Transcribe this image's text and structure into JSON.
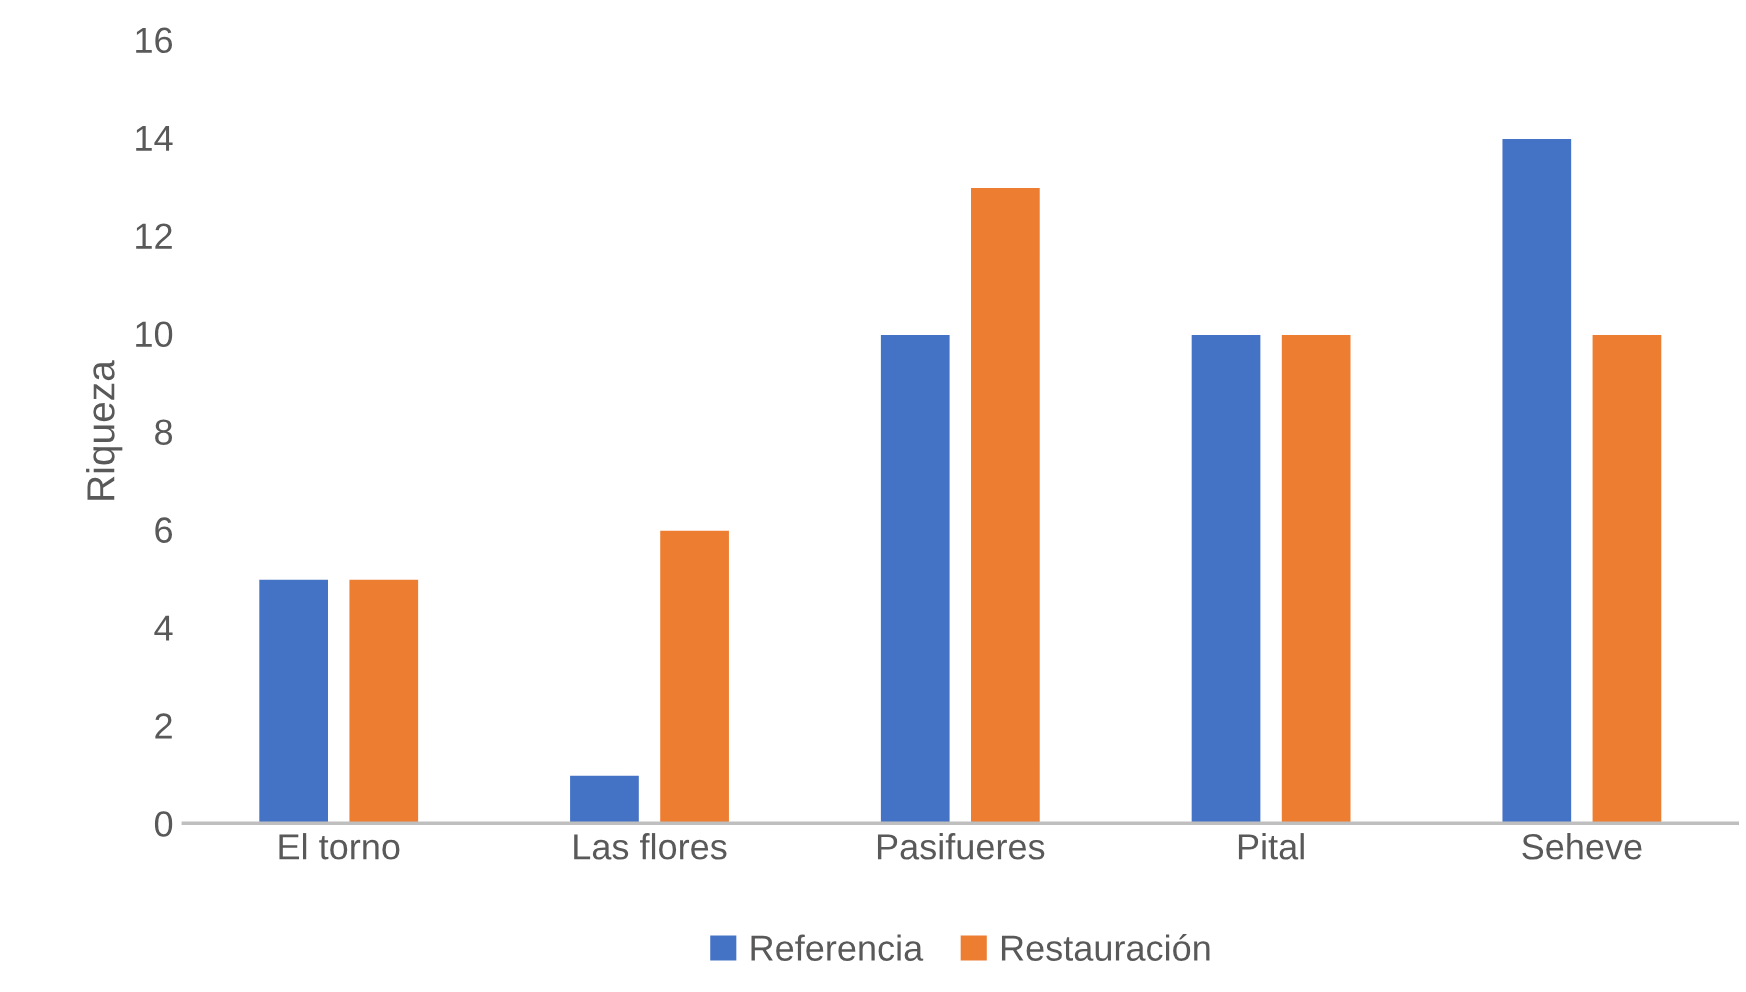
{
  "chart_data": {
    "type": "bar",
    "ylabel": "Riqueza",
    "categories": [
      "El torno",
      "Las flores",
      "Pasifueres",
      "Pital",
      "Seheve"
    ],
    "series": [
      {
        "name": "Referencia",
        "color": "#4472c4",
        "values": [
          5,
          1,
          10,
          10,
          14
        ]
      },
      {
        "name": "Restauración",
        "color": "#ed7d31",
        "values": [
          5,
          6,
          13,
          10,
          10
        ]
      }
    ],
    "ylim": [
      0,
      16
    ],
    "yticks": [
      0,
      2,
      4,
      6,
      8,
      10,
      12,
      14,
      16
    ],
    "grid": false,
    "legend": "bottom"
  }
}
